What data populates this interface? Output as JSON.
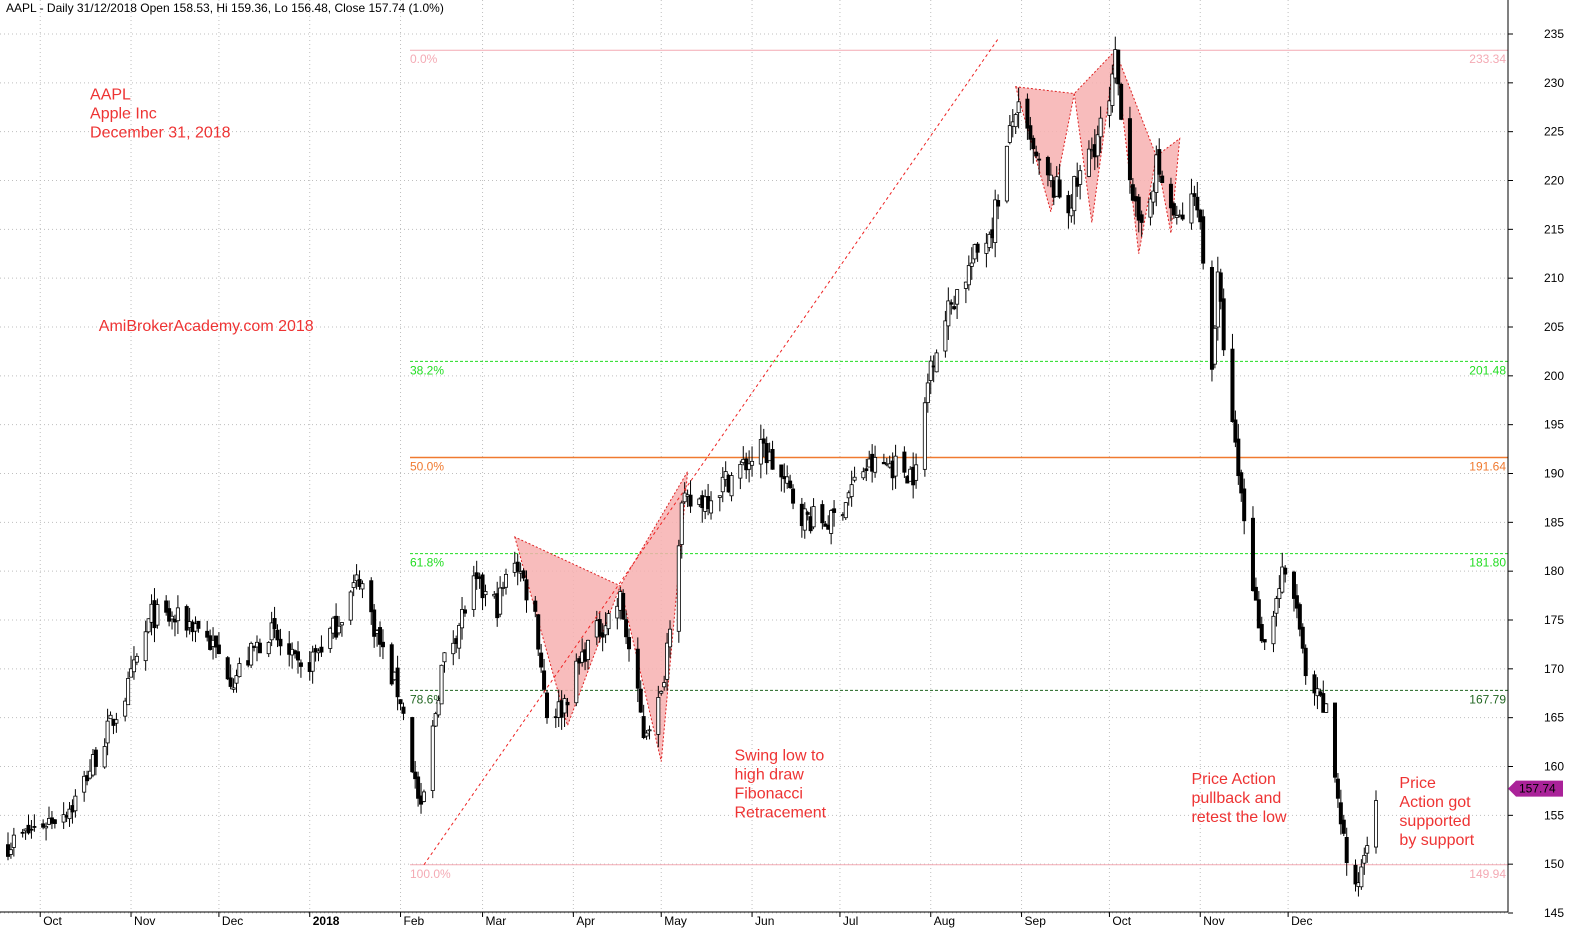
{
  "colors": {
    "background": "#ffffff",
    "grid": "#bfbfbf",
    "candle_up": "#ffffff",
    "candle_down": "#000000",
    "candle_outline": "#000000",
    "fib_extreme": "#f4aab4",
    "fib_green": "#22dd22",
    "fib_orange": "#f07a30",
    "fib_78": "#226622",
    "pattern_fill": "#f7b0b0",
    "pattern_stroke": "#dd2222",
    "trend_line": "#ee2222",
    "annotation": "#ee3333",
    "price_tag": "#aa2299"
  },
  "chart_data": {
    "type": "candlestick",
    "title": "AAPL - Daily 31/12/2018 Open 158.53, Hi 159.36, Lo 156.48, Close 157.74 (1.0%)",
    "ylim": [
      145,
      235
    ],
    "yticks": [
      145,
      150,
      155,
      160,
      165,
      170,
      175,
      180,
      185,
      190,
      195,
      200,
      205,
      210,
      215,
      220,
      225,
      230,
      235
    ],
    "x_months": [
      {
        "label": "Oct",
        "bold": false
      },
      {
        "label": "Nov",
        "bold": false
      },
      {
        "label": "Dec",
        "bold": false
      },
      {
        "label": "2018",
        "bold": true
      },
      {
        "label": "Feb",
        "bold": false
      },
      {
        "label": "Mar",
        "bold": false
      },
      {
        "label": "Apr",
        "bold": false
      },
      {
        "label": "May",
        "bold": false
      },
      {
        "label": "Jun",
        "bold": false
      },
      {
        "label": "Jul",
        "bold": false
      },
      {
        "label": "Aug",
        "bold": false
      },
      {
        "label": "Sep",
        "bold": false
      },
      {
        "label": "Oct",
        "bold": false
      },
      {
        "label": "Nov",
        "bold": false
      },
      {
        "label": "Dec",
        "bold": false
      }
    ],
    "grid": true,
    "fibonacci": [
      {
        "label": "0.0%",
        "value": 233.34,
        "value_label": "233.34",
        "kind": "extreme",
        "dash": false
      },
      {
        "label": "38.2%",
        "value": 201.48,
        "value_label": "201.48",
        "kind": "green",
        "dash": true
      },
      {
        "label": "50.0%",
        "value": 191.64,
        "value_label": "191.64",
        "kind": "orange",
        "dash": false
      },
      {
        "label": "61.8%",
        "value": 181.8,
        "value_label": "181.80",
        "kind": "green",
        "dash": true
      },
      {
        "label": "78.6%",
        "value": 167.79,
        "value_label": "167.79",
        "kind": "dark",
        "dash": true
      },
      {
        "label": "100.0%",
        "value": 149.94,
        "value_label": "149.94",
        "kind": "extreme",
        "dash": false
      }
    ],
    "last_price": 157.74,
    "last_price_label": "157.74",
    "anchors": [
      {
        "t": "2017-09-20",
        "p": 152
      },
      {
        "t": "2017-10-12",
        "p": 156
      },
      {
        "t": "2017-10-31",
        "p": 168
      },
      {
        "t": "2017-11-08",
        "p": 175.5
      },
      {
        "t": "2017-11-24",
        "p": 174.5
      },
      {
        "t": "2017-12-06",
        "p": 169
      },
      {
        "t": "2017-12-18",
        "p": 174
      },
      {
        "t": "2017-12-29",
        "p": 169.5
      },
      {
        "t": "2018-01-10",
        "p": 174.5
      },
      {
        "t": "2018-01-18",
        "p": 179.5
      },
      {
        "t": "2018-01-26",
        "p": 171.5
      },
      {
        "t": "2018-02-01",
        "p": 167
      },
      {
        "t": "2018-02-08",
        "p": 155
      },
      {
        "t": "2018-02-15",
        "p": 170
      },
      {
        "t": "2018-02-26",
        "p": 178.5
      },
      {
        "t": "2018-03-06",
        "p": 176.5
      },
      {
        "t": "2018-03-12",
        "p": 181.5
      },
      {
        "t": "2018-03-19",
        "p": 175.5
      },
      {
        "t": "2018-03-23",
        "p": 165.5
      },
      {
        "t": "2018-03-28",
        "p": 166
      },
      {
        "t": "2018-04-05",
        "p": 172
      },
      {
        "t": "2018-04-17",
        "p": 177
      },
      {
        "t": "2018-04-25",
        "p": 163.5
      },
      {
        "t": "2018-05-01",
        "p": 167
      },
      {
        "t": "2018-05-08",
        "p": 186.5
      },
      {
        "t": "2018-05-16",
        "p": 187.5
      },
      {
        "t": "2018-06-05",
        "p": 192.5
      },
      {
        "t": "2018-06-19",
        "p": 185.5
      },
      {
        "t": "2018-06-28",
        "p": 185
      },
      {
        "t": "2018-07-09",
        "p": 190.5
      },
      {
        "t": "2018-07-18",
        "p": 191
      },
      {
        "t": "2018-07-27",
        "p": 190
      },
      {
        "t": "2018-08-01",
        "p": 201.5
      },
      {
        "t": "2018-08-08",
        "p": 207.5
      },
      {
        "t": "2018-08-22",
        "p": 215.5
      },
      {
        "t": "2018-08-30",
        "p": 227.5
      },
      {
        "t": "2018-09-07",
        "p": 221
      },
      {
        "t": "2018-09-17",
        "p": 217.5
      },
      {
        "t": "2018-10-01",
        "p": 227.5
      },
      {
        "t": "2018-10-03",
        "p": 232
      },
      {
        "t": "2018-10-11",
        "p": 214.5
      },
      {
        "t": "2018-10-17",
        "p": 221.5
      },
      {
        "t": "2018-10-24",
        "p": 215.5
      },
      {
        "t": "2018-10-31",
        "p": 218.5
      },
      {
        "t": "2018-11-05",
        "p": 201.5
      },
      {
        "t": "2018-11-07",
        "p": 209.5
      },
      {
        "t": "2018-11-12",
        "p": 194.5
      },
      {
        "t": "2018-11-20",
        "p": 176.5
      },
      {
        "t": "2018-11-23",
        "p": 172.5
      },
      {
        "t": "2018-11-29",
        "p": 179.5
      },
      {
        "t": "2018-12-04",
        "p": 176.5
      },
      {
        "t": "2018-12-07",
        "p": 168.5
      },
      {
        "t": "2018-12-14",
        "p": 165.5
      },
      {
        "t": "2018-12-21",
        "p": 150.5
      },
      {
        "t": "2018-12-24",
        "p": 146.8
      },
      {
        "t": "2018-12-31",
        "p": 157.74
      }
    ],
    "harmonic_patterns": [
      {
        "points": [
          {
            "t": "2018-03-12",
            "p": 183.5
          },
          {
            "t": "2018-03-30",
            "p": 164.2
          },
          {
            "t": "2018-04-17",
            "p": 178.5
          }
        ]
      },
      {
        "points": [
          {
            "t": "2018-04-17",
            "p": 178.5
          },
          {
            "t": "2018-05-01",
            "p": 160.5
          },
          {
            "t": "2018-05-10",
            "p": 190.2
          }
        ]
      },
      {
        "points": [
          {
            "t": "2018-08-30",
            "p": 229.6
          },
          {
            "t": "2018-09-11",
            "p": 216.8
          },
          {
            "t": "2018-09-19",
            "p": 228.9
          }
        ]
      },
      {
        "points": [
          {
            "t": "2018-09-19",
            "p": 228.9
          },
          {
            "t": "2018-09-25",
            "p": 215.7
          },
          {
            "t": "2018-10-03",
            "p": 233.3
          }
        ]
      },
      {
        "points": [
          {
            "t": "2018-10-03",
            "p": 233.3
          },
          {
            "t": "2018-10-11",
            "p": 212.5
          },
          {
            "t": "2018-10-17",
            "p": 222.5
          }
        ]
      },
      {
        "points": [
          {
            "t": "2018-10-17",
            "p": 222.5
          },
          {
            "t": "2018-10-22",
            "p": 214.6
          },
          {
            "t": "2018-10-25",
            "p": 224.3
          }
        ]
      }
    ],
    "trend_line": {
      "from": {
        "t": "2018-02-09",
        "p": 149.94
      },
      "to": {
        "t": "2018-08-24",
        "p": 234.5
      }
    },
    "annotations": [
      {
        "lines": [
          "AAPL",
          "Apple Inc",
          "December 31, 2018"
        ],
        "anchor": {
          "t": "2017-10-18",
          "p": 228.3
        }
      },
      {
        "lines": [
          "AmiBrokerAcademy.com  2018"
        ],
        "anchor": {
          "t": "2017-10-21",
          "p": 204.6
        }
      },
      {
        "lines": [
          "Swing low to",
          "high draw",
          "Fibonacci",
          "Retracement"
        ],
        "anchor": {
          "t": "2018-05-26",
          "p": 160.6
        }
      },
      {
        "lines": [
          "Price Action",
          "pullback and",
          "retest the low"
        ],
        "anchor": {
          "t": "2018-10-29",
          "p": 158.2
        }
      },
      {
        "lines": [
          "Price",
          "Action got",
          "supported",
          "by support"
        ],
        "anchor": {
          "t": "2019-01-08",
          "p": 157.8
        }
      }
    ]
  }
}
